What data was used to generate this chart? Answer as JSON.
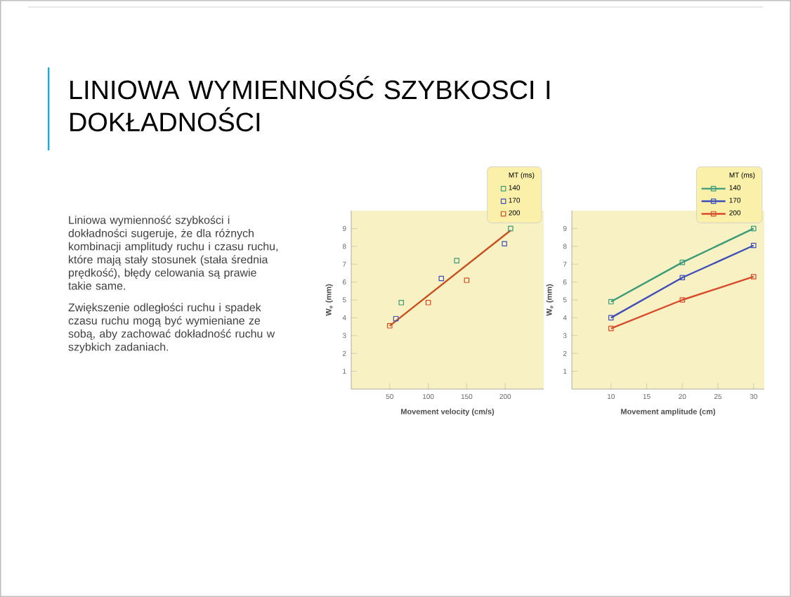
{
  "chart_data": [
    {
      "type": "other",
      "title": "LINIOWA WYMIENNOŚĆ SZYBKOSCI I DOKŁADNOŚCI",
      "annotations": [
        "Liniowa wymienność szybkości i dokładności sugeruje, że dla różnych kombinacji amplitudy ruchu i czasu ruchu, które mają stały stosunek (stała średnia prędkość), błędy celowania są prawie takie same.",
        "Zwiększenie odległości ruchu i spadek czasu ruchu mogą być wymieniane ze sobą, aby zachować dokładność ruchu w szybkich zadaniach."
      ]
    },
    {
      "type": "scatter",
      "xlabel": "Movement velocity (cm/s)",
      "ylabel": "W$_{e}$ (mm)",
      "legend_title": "MT (ms)",
      "legend": "top right",
      "marker": "square",
      "xlim": [
        0,
        250
      ],
      "ylim": [
        0,
        10
      ],
      "xticks": [
        50,
        100,
        150,
        200
      ],
      "yticks": [
        1,
        2,
        3,
        4,
        5,
        6,
        7,
        8,
        9
      ],
      "series": [
        {
          "name": "140",
          "color": "#3a9a78",
          "x": [
            65,
            137,
            207
          ],
          "values": [
            4.85,
            7.2,
            9.0
          ]
        },
        {
          "name": "170",
          "color": "#3f4fb8",
          "x": [
            58,
            117,
            199
          ],
          "values": [
            3.95,
            6.2,
            8.15
          ]
        },
        {
          "name": "200",
          "color": "#d94a2a",
          "x": [
            50,
            100,
            150
          ],
          "values": [
            3.55,
            4.85,
            6.1
          ]
        },
        {
          "type": "line",
          "color": "#c8501e",
          "marker": "none",
          "x": [
            50,
            207
          ],
          "values": [
            3.55,
            8.9
          ]
        }
      ]
    },
    {
      "type": "line",
      "xlabel": "Movement amplitude (cm)",
      "ylabel": "W$_{e}$ (mm)",
      "legend_title": "MT (ms)",
      "legend": "top right",
      "marker": "square",
      "line_style": "solid",
      "xlim": [
        4.5,
        31.5
      ],
      "ylim": [
        0,
        10
      ],
      "xticks": [
        10,
        15,
        20,
        25,
        30
      ],
      "yticks": [
        1,
        2,
        3,
        4,
        5,
        6,
        7,
        8,
        9
      ],
      "series": [
        {
          "name": "140",
          "color": "#3a9a78",
          "x": [
            10,
            20,
            30
          ],
          "values": [
            4.9,
            7.1,
            9.0
          ]
        },
        {
          "name": "170",
          "color": "#3f4fb8",
          "x": [
            10,
            20,
            30
          ],
          "values": [
            4.0,
            6.25,
            8.05
          ]
        },
        {
          "name": "200",
          "color": "#d94a2a",
          "x": [
            10,
            20,
            30
          ],
          "values": [
            3.4,
            5.0,
            6.3
          ]
        }
      ]
    }
  ]
}
